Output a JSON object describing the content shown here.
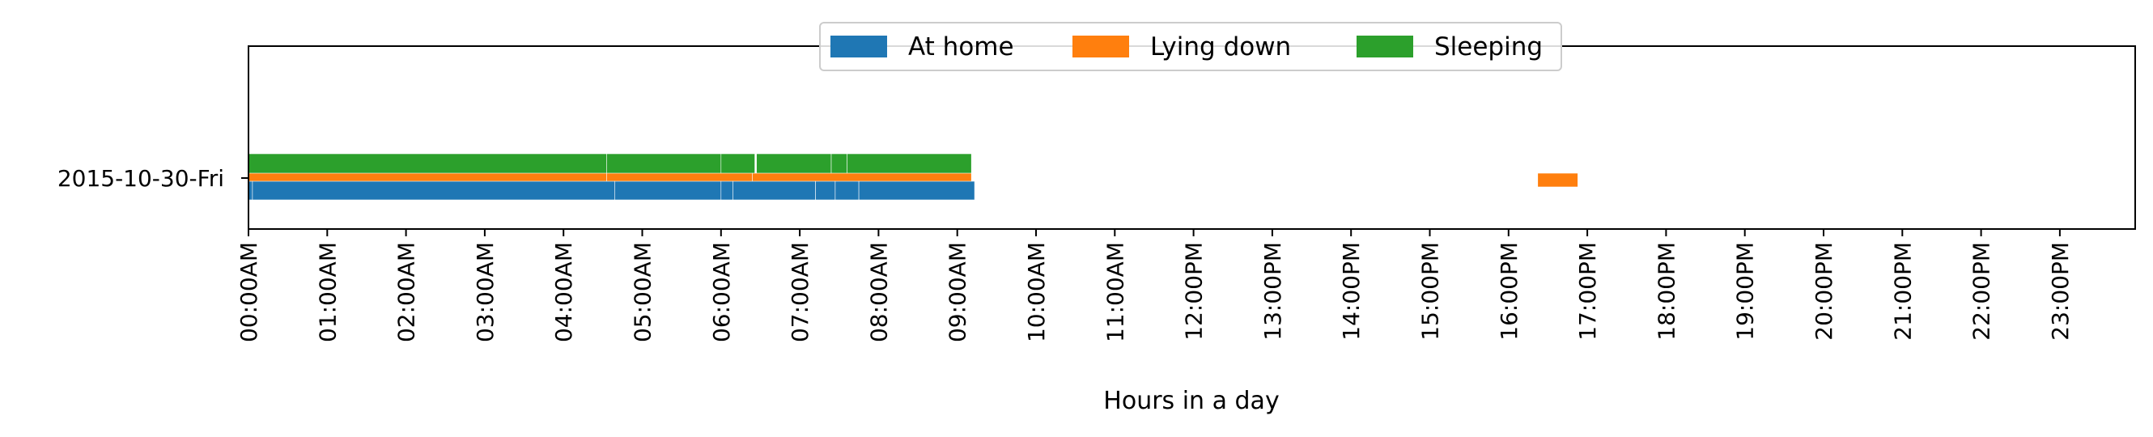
{
  "chart_data": {
    "type": "timeline",
    "xlabel": "Hours in a day",
    "xlim_hours": [
      0,
      24
    ],
    "x_ticks": [
      "00:00AM",
      "01:00AM",
      "02:00AM",
      "03:00AM",
      "04:00AM",
      "05:00AM",
      "06:00AM",
      "07:00AM",
      "08:00AM",
      "09:00AM",
      "10:00AM",
      "11:00AM",
      "12:00PM",
      "13:00PM",
      "14:00PM",
      "15:00PM",
      "16:00PM",
      "17:00PM",
      "18:00PM",
      "19:00PM",
      "20:00PM",
      "21:00PM",
      "22:00PM",
      "23:00PM"
    ],
    "y_categories": [
      "2015-10-30-Fri"
    ],
    "legend_placement": "top-center",
    "grid": false,
    "series": [
      {
        "name": "At home",
        "color": "#1f77b4",
        "intervals": [
          [
            0.0,
            0.05
          ],
          [
            0.05,
            4.65
          ],
          [
            4.65,
            6.0
          ],
          [
            6.0,
            6.15
          ],
          [
            6.15,
            7.2
          ],
          [
            7.2,
            7.45
          ],
          [
            7.45,
            7.75
          ],
          [
            7.75,
            9.22
          ]
        ]
      },
      {
        "name": "Lying down",
        "color": "#ff7f0e",
        "intervals": [
          [
            0.0,
            4.55
          ],
          [
            4.55,
            6.4
          ],
          [
            6.4,
            9.18
          ],
          [
            16.37,
            16.88
          ]
        ]
      },
      {
        "name": "Sleeping",
        "color": "#2ca02c",
        "intervals": [
          [
            0.0,
            4.55
          ],
          [
            4.55,
            6.0
          ],
          [
            6.0,
            6.43
          ],
          [
            6.45,
            7.4
          ],
          [
            7.4,
            7.6
          ],
          [
            7.6,
            9.18
          ]
        ]
      }
    ]
  }
}
